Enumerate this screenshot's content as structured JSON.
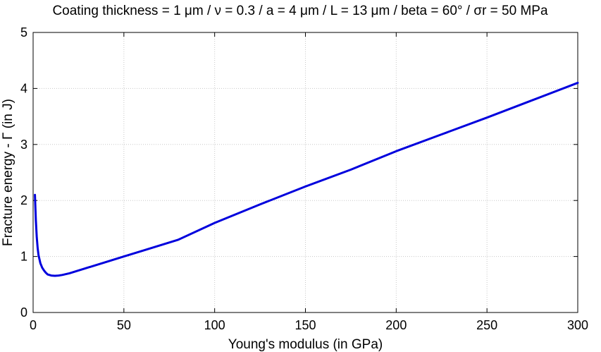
{
  "chart_data": {
    "type": "line",
    "title": "Coating thickness = 1 μm / ν = 0.3 / a = 4 μm / L = 13 μm / beta = 60° / σr = 50 MPa",
    "xlabel": "Young's modulus (in GPa)",
    "ylabel": "Fracture energy - Γ (in J)",
    "xlim": [
      0,
      300
    ],
    "ylim": [
      0,
      5
    ],
    "xticks": [
      0,
      50,
      100,
      150,
      200,
      250,
      300
    ],
    "yticks": [
      0,
      1,
      2,
      3,
      4,
      5
    ],
    "xtick_labels": [
      "0",
      "50",
      "100",
      "150",
      "200",
      "250",
      "300"
    ],
    "ytick_labels": [
      "0",
      "1",
      "2",
      "3",
      "4",
      "5"
    ],
    "grid": true,
    "series_color": "#0000dd",
    "series": [
      {
        "x": [
          1,
          1.5,
          2,
          2.5,
          3,
          4,
          5,
          6,
          7,
          8,
          10,
          12,
          14,
          16,
          20,
          25,
          30,
          40,
          50,
          60,
          80,
          100,
          125,
          150,
          175,
          200,
          225,
          250,
          275,
          300
        ],
        "y": [
          2.1,
          1.65,
          1.35,
          1.15,
          1.02,
          0.88,
          0.8,
          0.75,
          0.71,
          0.68,
          0.66,
          0.655,
          0.66,
          0.67,
          0.7,
          0.75,
          0.8,
          0.9,
          1.0,
          1.1,
          1.3,
          1.6,
          1.93,
          2.25,
          2.55,
          2.88,
          3.18,
          3.48,
          3.79,
          4.1
        ]
      }
    ]
  }
}
